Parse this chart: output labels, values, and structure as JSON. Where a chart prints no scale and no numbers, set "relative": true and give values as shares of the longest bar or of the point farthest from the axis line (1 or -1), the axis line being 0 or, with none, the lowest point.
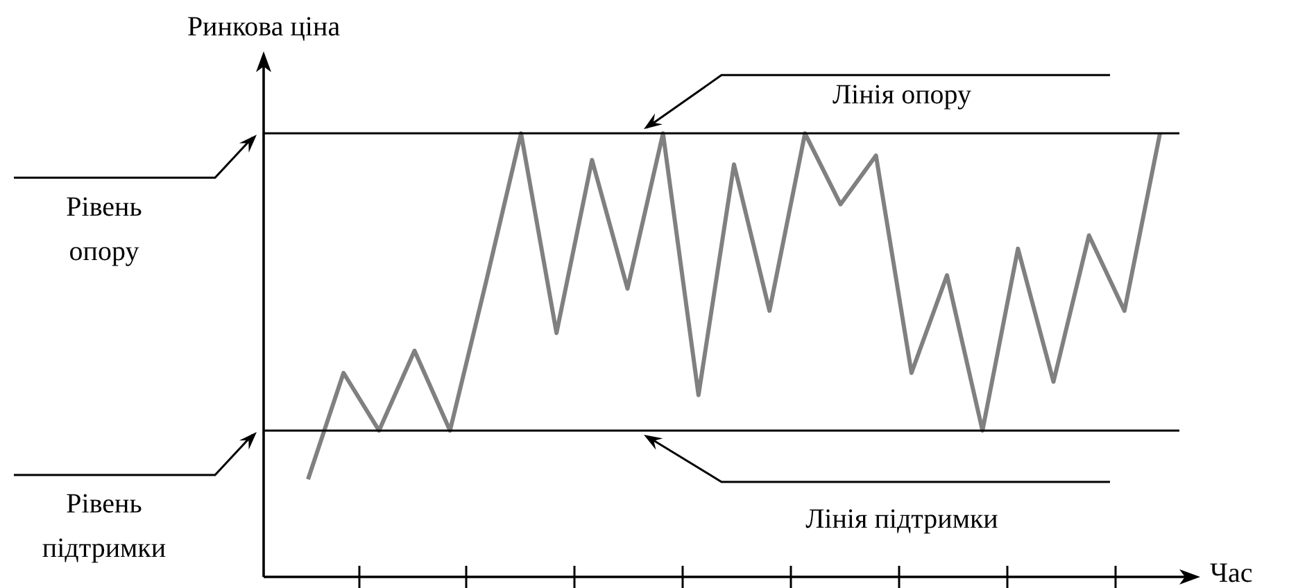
{
  "chart_data": {
    "type": "line",
    "ylabel": "Ринкова ціна",
    "xlabel": "Час",
    "relative": true,
    "color": "#808080",
    "categories": [
      null,
      null,
      null,
      null,
      null,
      null,
      null,
      null,
      null,
      null,
      null,
      null,
      null,
      null,
      null,
      null,
      null,
      null,
      null,
      null,
      null,
      null,
      null,
      null,
      null
    ],
    "values": [
      0.22,
      0.46,
      0.33,
      0.51,
      0.33,
      0.66,
      1,
      0.55,
      0.94,
      0.65,
      1,
      0.41,
      0.93,
      0.6,
      1,
      0.84,
      0.95,
      0.46,
      0.68,
      0.33,
      0.74,
      0.44,
      0.77,
      0.6,
      1
    ],
    "legend": false,
    "marker": "none",
    "line_style": "solid",
    "ref_lines": [
      {
        "axis": "y",
        "value": 1,
        "label": "Лінія опору",
        "color": "#000000"
      },
      {
        "axis": "y",
        "value": 0.33,
        "label": "Лінія підтримки",
        "color": "#000000"
      }
    ],
    "annotations": [
      "Рівень опору",
      "Рівень підтримки"
    ]
  }
}
